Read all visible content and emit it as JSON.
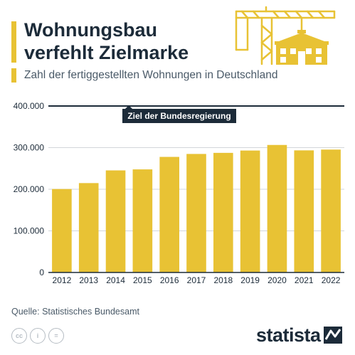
{
  "header": {
    "title_line1": "Wohnungsbau",
    "title_line2": "verfehlt Zielmarke",
    "subtitle": "Zahl der fertiggestellten Wohnungen in Deutschland"
  },
  "colors": {
    "bar": "#e8c234",
    "text": "#1c2b39",
    "grid": "#d3d6d9",
    "muted": "#4a5a68"
  },
  "chart_data": {
    "type": "bar",
    "categories": [
      "2012",
      "2013",
      "2014",
      "2015",
      "2016",
      "2017",
      "2018",
      "2019",
      "2020",
      "2021",
      "2022"
    ],
    "values": [
      200500,
      214800,
      245300,
      247700,
      277700,
      284800,
      287400,
      293000,
      306400,
      293400,
      295300
    ],
    "yticks": [
      0,
      100000,
      200000,
      300000,
      400000
    ],
    "ytick_labels": [
      "0",
      "100.000",
      "200.000",
      "300.000",
      "400.000"
    ],
    "ylim": [
      0,
      400000
    ],
    "grid": true,
    "target": {
      "value": 400000,
      "label": "Ziel der Bundesregierung"
    }
  },
  "footer": {
    "source": "Quelle: Statistisches Bundesamt",
    "license_icons": [
      "cc-icon",
      "by-icon",
      "nd-icon"
    ],
    "license_glyphs": [
      "cc",
      "i",
      "="
    ],
    "brand": "statista"
  }
}
